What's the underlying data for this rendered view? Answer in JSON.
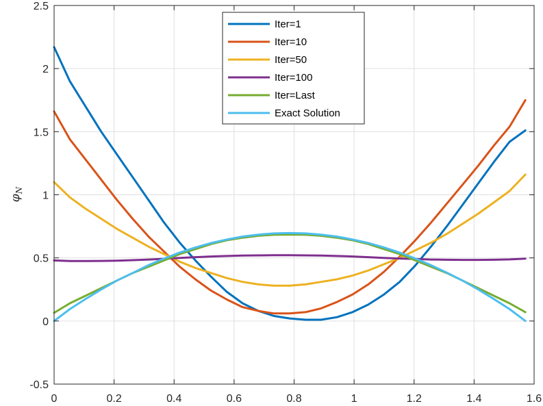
{
  "chart_data": {
    "type": "line",
    "title": "",
    "xlabel": "",
    "ylabel": "φ_N",
    "ylabel_main": "φ",
    "ylabel_sub": "N",
    "xlim": [
      0,
      1.6
    ],
    "ylim": [
      -0.5,
      2.5
    ],
    "grid": true,
    "legend_position": "top-center",
    "xticks": [
      0,
      0.2,
      0.4,
      0.6,
      0.8,
      1,
      1.2,
      1.4,
      1.6
    ],
    "xtick_labels": [
      "0",
      "0.2",
      "0.4",
      "0.6",
      "0.8",
      "1",
      "1.2",
      "1.4",
      "1.6"
    ],
    "yticks": [
      -0.5,
      0,
      0.5,
      1,
      1.5,
      2,
      2.5
    ],
    "ytick_labels": [
      "-0.5",
      "0",
      "0.5",
      "1",
      "1.5",
      "2",
      "2.5"
    ],
    "x": [
      0,
      0.0524,
      0.1047,
      0.1571,
      0.2094,
      0.2618,
      0.3142,
      0.3665,
      0.4189,
      0.4712,
      0.5236,
      0.576,
      0.6283,
      0.6807,
      0.733,
      0.7854,
      0.8378,
      0.8901,
      0.9425,
      0.9948,
      1.0472,
      1.0996,
      1.1519,
      1.2043,
      1.2566,
      1.309,
      1.3614,
      1.4137,
      1.4661,
      1.5184,
      1.5708
    ],
    "series": [
      {
        "name": "Iter=1",
        "color": "#0072BD",
        "values": [
          2.17,
          1.9,
          1.7,
          1.5,
          1.32,
          1.14,
          0.96,
          0.78,
          0.62,
          0.48,
          0.35,
          0.23,
          0.14,
          0.08,
          0.04,
          0.02,
          0.01,
          0.01,
          0.03,
          0.07,
          0.13,
          0.21,
          0.31,
          0.44,
          0.59,
          0.75,
          0.92,
          1.09,
          1.26,
          1.42,
          1.51
        ]
      },
      {
        "name": "Iter=10",
        "color": "#D95319",
        "values": [
          1.66,
          1.44,
          1.28,
          1.12,
          0.96,
          0.81,
          0.67,
          0.55,
          0.43,
          0.33,
          0.24,
          0.17,
          0.11,
          0.08,
          0.06,
          0.06,
          0.07,
          0.1,
          0.15,
          0.21,
          0.29,
          0.39,
          0.51,
          0.64,
          0.78,
          0.93,
          1.08,
          1.23,
          1.39,
          1.54,
          1.75
        ]
      },
      {
        "name": "Iter=50",
        "color": "#EDB120",
        "values": [
          1.1,
          0.98,
          0.89,
          0.81,
          0.73,
          0.66,
          0.59,
          0.53,
          0.47,
          0.42,
          0.38,
          0.34,
          0.31,
          0.29,
          0.28,
          0.28,
          0.29,
          0.31,
          0.33,
          0.36,
          0.4,
          0.45,
          0.5,
          0.56,
          0.62,
          0.69,
          0.77,
          0.85,
          0.94,
          1.03,
          1.16
        ]
      },
      {
        "name": "Iter=100",
        "color": "#7E2F8E",
        "values": [
          0.48,
          0.475,
          0.475,
          0.476,
          0.478,
          0.482,
          0.487,
          0.493,
          0.5,
          0.506,
          0.511,
          0.515,
          0.518,
          0.52,
          0.521,
          0.521,
          0.52,
          0.518,
          0.515,
          0.511,
          0.506,
          0.5,
          0.495,
          0.491,
          0.487,
          0.485,
          0.484,
          0.484,
          0.485,
          0.488,
          0.494
        ]
      },
      {
        "name": "Iter=Last",
        "color": "#77AC30",
        "values": [
          0.065,
          0.14,
          0.2,
          0.26,
          0.32,
          0.38,
          0.43,
          0.48,
          0.53,
          0.57,
          0.61,
          0.64,
          0.66,
          0.675,
          0.683,
          0.685,
          0.683,
          0.675,
          0.66,
          0.64,
          0.61,
          0.57,
          0.53,
          0.48,
          0.43,
          0.38,
          0.32,
          0.26,
          0.2,
          0.14,
          0.07
        ]
      },
      {
        "name": "Exact Solution",
        "color": "#4DBEEE",
        "values": [
          0,
          0.094,
          0.174,
          0.25,
          0.32,
          0.38,
          0.442,
          0.495,
          0.542,
          0.583,
          0.618,
          0.646,
          0.669,
          0.684,
          0.694,
          0.697,
          0.694,
          0.684,
          0.669,
          0.646,
          0.618,
          0.583,
          0.542,
          0.495,
          0.442,
          0.383,
          0.32,
          0.25,
          0.174,
          0.094,
          0
        ]
      }
    ]
  }
}
